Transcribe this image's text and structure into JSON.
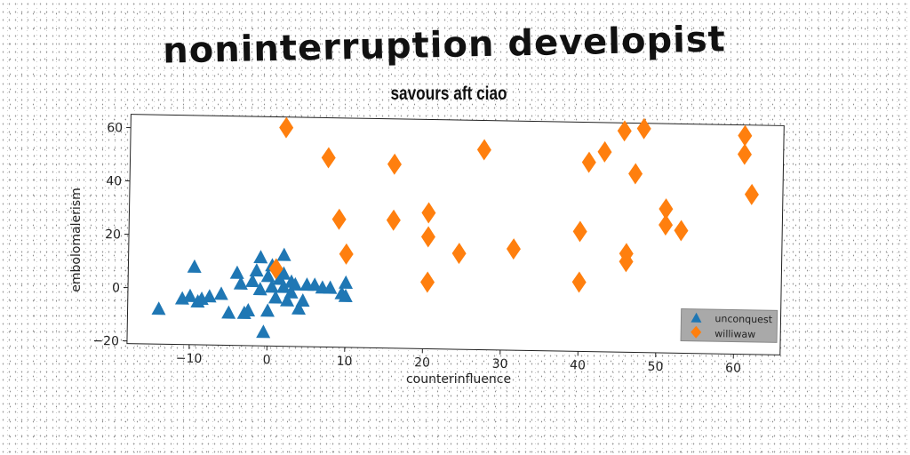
{
  "chart_data": {
    "type": "scatter",
    "title": "noninterruption developist",
    "subtitle": "savours aft ciao",
    "xlabel": "counterinfluence",
    "ylabel": "embolomalerism",
    "xlim": [
      -18,
      66
    ],
    "ylim": [
      -21,
      65
    ],
    "xticks": [
      -10,
      0,
      10,
      20,
      30,
      40,
      50,
      60
    ],
    "yticks": [
      -20,
      0,
      20,
      40,
      60
    ],
    "xtick_labels": [
      "−10",
      "0",
      "10",
      "20",
      "30",
      "40",
      "50",
      "60"
    ],
    "yticks_labels": [
      "−20",
      "0",
      "20",
      "40",
      "60"
    ],
    "legend_position": "lower-right",
    "grid": false,
    "series": [
      {
        "name": "unconquest",
        "marker": "triangle",
        "color": "#1f77b4",
        "points": [
          [
            -14,
            -8
          ],
          [
            -11,
            -4
          ],
          [
            -10,
            -3
          ],
          [
            -9.5,
            8
          ],
          [
            -9,
            -5
          ],
          [
            -8.5,
            -4
          ],
          [
            -7.5,
            -3
          ],
          [
            -5,
            -9
          ],
          [
            -4,
            6
          ],
          [
            -3.5,
            2
          ],
          [
            -3,
            -9
          ],
          [
            -2.5,
            -8
          ],
          [
            -2,
            3
          ],
          [
            -1.5,
            7
          ],
          [
            -1,
            0
          ],
          [
            -1,
            12
          ],
          [
            -0.5,
            -16
          ],
          [
            0,
            5
          ],
          [
            0,
            -8
          ],
          [
            0.5,
            1
          ],
          [
            1,
            -3
          ],
          [
            1.5,
            4
          ],
          [
            2,
            13
          ],
          [
            2,
            1
          ],
          [
            2.5,
            -4
          ],
          [
            3,
            3
          ],
          [
            3,
            -1
          ],
          [
            3.5,
            2
          ],
          [
            4,
            -7
          ],
          [
            4.5,
            -4
          ],
          [
            5,
            2
          ],
          [
            6,
            2
          ],
          [
            7,
            1
          ],
          [
            8,
            1
          ],
          [
            9.5,
            -1
          ],
          [
            10,
            3
          ],
          [
            10,
            -2
          ],
          [
            2,
            6
          ],
          [
            -6,
            -2
          ],
          [
            0.5,
            9
          ]
        ]
      },
      {
        "name": "williwaw",
        "marker": "diamond",
        "color": "#ff7f0e",
        "points": [
          [
            2,
            61
          ],
          [
            1,
            8
          ],
          [
            7.5,
            50
          ],
          [
            9,
            27
          ],
          [
            10,
            14
          ],
          [
            16,
            48
          ],
          [
            16,
            27
          ],
          [
            20.5,
            30
          ],
          [
            20.5,
            21
          ],
          [
            20.5,
            4
          ],
          [
            24.5,
            15
          ],
          [
            27.5,
            54
          ],
          [
            31.5,
            17
          ],
          [
            40,
            24
          ],
          [
            40,
            5
          ],
          [
            41,
            50
          ],
          [
            43,
            54
          ],
          [
            45.5,
            62
          ],
          [
            46,
            16
          ],
          [
            46,
            13
          ],
          [
            47,
            46
          ],
          [
            48,
            63
          ],
          [
            51,
            33
          ],
          [
            51,
            27
          ],
          [
            53,
            25
          ],
          [
            61,
            61
          ],
          [
            61,
            54
          ],
          [
            62,
            39
          ]
        ]
      }
    ]
  }
}
